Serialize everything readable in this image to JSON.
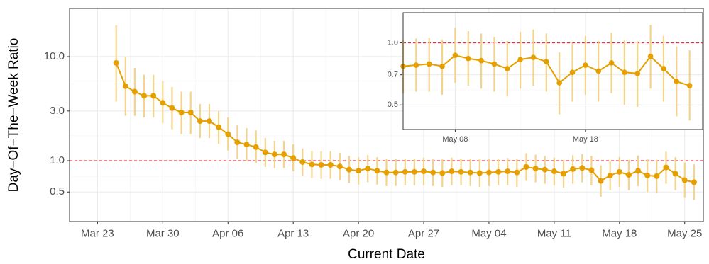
{
  "chart_data": [
    {
      "type": "line",
      "ylabel": "Day−Of−The−Week Ratio",
      "xlabel": "Current Date",
      "x": [
        "Mar 25",
        "Mar 26",
        "Mar 27",
        "Mar 28",
        "Mar 29",
        "Mar 30",
        "Mar 31",
        "Apr 01",
        "Apr 02",
        "Apr 03",
        "Apr 04",
        "Apr 05",
        "Apr 06",
        "Apr 07",
        "Apr 08",
        "Apr 09",
        "Apr 10",
        "Apr 11",
        "Apr 12",
        "Apr 13",
        "Apr 14",
        "Apr 15",
        "Apr 16",
        "Apr 17",
        "Apr 18",
        "Apr 19",
        "Apr 20",
        "Apr 21",
        "Apr 22",
        "Apr 23",
        "Apr 24",
        "Apr 25",
        "Apr 26",
        "Apr 27",
        "Apr 28",
        "Apr 29",
        "Apr 30",
        "May 01",
        "May 02",
        "May 03",
        "May 04",
        "May 05",
        "May 06",
        "May 07",
        "May 08",
        "May 09",
        "May 10",
        "May 11",
        "May 12",
        "May 13",
        "May 14",
        "May 15",
        "May 16",
        "May 17",
        "May 18",
        "May 19",
        "May 20",
        "May 21",
        "May 22",
        "May 23",
        "May 24",
        "May 25",
        "May 26"
      ],
      "series": [
        {
          "color": "#E69F00",
          "error_color": "#F4D38A",
          "values": [
            8.7,
            5.2,
            4.6,
            4.2,
            4.2,
            3.6,
            3.2,
            2.9,
            2.9,
            2.4,
            2.4,
            2.1,
            1.8,
            1.5,
            1.43,
            1.35,
            1.2,
            1.15,
            1.15,
            1.06,
            0.97,
            0.92,
            0.91,
            0.91,
            0.88,
            0.82,
            0.8,
            0.84,
            0.8,
            0.77,
            0.77,
            0.78,
            0.78,
            0.79,
            0.77,
            0.76,
            0.79,
            0.78,
            0.77,
            0.76,
            0.77,
            0.78,
            0.79,
            0.77,
            0.87,
            0.84,
            0.82,
            0.79,
            0.75,
            0.83,
            0.85,
            0.81,
            0.64,
            0.72,
            0.78,
            0.73,
            0.8,
            0.72,
            0.71,
            0.86,
            0.75,
            0.65,
            0.62
          ],
          "lower": [
            3.7,
            2.7,
            2.7,
            2.6,
            2.6,
            2.3,
            2.0,
            1.8,
            1.8,
            1.65,
            1.65,
            1.45,
            1.25,
            1.05,
            1.0,
            0.95,
            0.87,
            0.85,
            0.85,
            0.79,
            0.72,
            0.68,
            0.67,
            0.67,
            0.65,
            0.61,
            0.59,
            0.62,
            0.59,
            0.57,
            0.57,
            0.58,
            0.58,
            0.58,
            0.57,
            0.56,
            0.58,
            0.58,
            0.57,
            0.56,
            0.57,
            0.58,
            0.58,
            0.56,
            0.64,
            0.62,
            0.6,
            0.58,
            0.55,
            0.6,
            0.62,
            0.58,
            0.45,
            0.52,
            0.56,
            0.52,
            0.57,
            0.5,
            0.49,
            0.6,
            0.52,
            0.44,
            0.42
          ],
          "upper": [
            20,
            10,
            7.8,
            6.7,
            6.7,
            5.8,
            5.1,
            4.6,
            4.6,
            3.5,
            3.5,
            3.0,
            2.6,
            2.2,
            2.05,
            1.95,
            1.65,
            1.55,
            1.55,
            1.43,
            1.31,
            1.24,
            1.23,
            1.23,
            1.19,
            1.11,
            1.08,
            1.13,
            1.08,
            1.04,
            1.04,
            1.05,
            1.05,
            1.07,
            1.04,
            1.03,
            1.07,
            1.05,
            1.04,
            1.03,
            1.04,
            1.05,
            1.06,
            1.04,
            1.18,
            1.14,
            1.11,
            1.07,
            1.02,
            1.13,
            1.16,
            1.11,
            0.9,
            1.0,
            1.08,
            1.02,
            1.12,
            1.03,
            1.02,
            1.22,
            1.08,
            0.96,
            0.92
          ]
        }
      ],
      "xlim": [
        "Mar 20",
        "May 27"
      ],
      "xticks": [
        "Mar 23",
        "Mar 30",
        "Apr 06",
        "Apr 13",
        "Apr 20",
        "Apr 27",
        "May 04",
        "May 11",
        "May 18",
        "May 25"
      ],
      "ylim": [
        0.26,
        29
      ],
      "yticks": [
        {
          "value": 10,
          "label": "10.0"
        },
        {
          "value": 3,
          "label": "3.0"
        },
        {
          "value": 1,
          "label": "1.0"
        },
        0.5
      ],
      "log_y": true,
      "grid": true,
      "hline": {
        "value": 1,
        "color": "#E41A1C"
      }
    },
    {
      "type": "line",
      "xlim": [
        "May 04",
        "May 27"
      ],
      "xticks": [
        "May 08",
        "May 18"
      ],
      "ylim": [
        0.38,
        1.4
      ],
      "yticks": [
        {
          "value": 1,
          "label": "1.0"
        },
        0.7,
        0.5
      ],
      "log_y": true,
      "grid": true,
      "hline": {
        "value": 1,
        "color": "#E41A1C"
      }
    }
  ]
}
